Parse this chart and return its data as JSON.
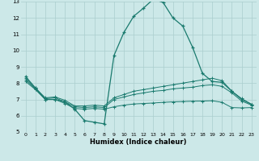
{
  "xlabel": "Humidex (Indice chaleur)",
  "background_color": "#cce8e8",
  "grid_color": "#aacece",
  "line_color": "#1a7a6e",
  "xlim": [
    -0.5,
    23.5
  ],
  "ylim": [
    5,
    13
  ],
  "xticks": [
    0,
    1,
    2,
    3,
    4,
    5,
    6,
    7,
    8,
    9,
    10,
    11,
    12,
    13,
    14,
    15,
    16,
    17,
    18,
    19,
    20,
    21,
    22,
    23
  ],
  "yticks": [
    5,
    6,
    7,
    8,
    9,
    10,
    11,
    12,
    13
  ],
  "line1_x": [
    0,
    1,
    2,
    3,
    4,
    5,
    6,
    7,
    8,
    9,
    10,
    11,
    12,
    13,
    14,
    15,
    16,
    17,
    18,
    19,
    20,
    21,
    22,
    23
  ],
  "line1_y": [
    8.4,
    7.7,
    7.0,
    7.0,
    6.85,
    6.4,
    5.7,
    5.6,
    5.5,
    9.7,
    11.1,
    12.1,
    12.6,
    13.15,
    12.95,
    12.0,
    11.5,
    10.2,
    8.6,
    8.1,
    8.05,
    7.5,
    7.0,
    6.7
  ],
  "line2_x": [
    0,
    1,
    2,
    3,
    4,
    5,
    6,
    7,
    8,
    9,
    10,
    11,
    12,
    13,
    14,
    15,
    16,
    17,
    18,
    19,
    20,
    21,
    22,
    23
  ],
  "line2_y": [
    8.3,
    7.7,
    7.1,
    7.15,
    6.95,
    6.6,
    6.6,
    6.65,
    6.6,
    7.1,
    7.3,
    7.5,
    7.6,
    7.7,
    7.8,
    7.9,
    8.0,
    8.1,
    8.2,
    8.3,
    8.15,
    7.5,
    7.05,
    6.7
  ],
  "line3_x": [
    0,
    1,
    2,
    3,
    4,
    5,
    6,
    7,
    8,
    9,
    10,
    11,
    12,
    13,
    14,
    15,
    16,
    17,
    18,
    19,
    20,
    21,
    22,
    23
  ],
  "line3_y": [
    8.2,
    7.65,
    7.05,
    7.1,
    6.85,
    6.55,
    6.5,
    6.55,
    6.5,
    7.0,
    7.15,
    7.3,
    7.4,
    7.5,
    7.55,
    7.65,
    7.7,
    7.75,
    7.85,
    7.9,
    7.8,
    7.4,
    6.9,
    6.65
  ],
  "line4_x": [
    0,
    1,
    2,
    3,
    4,
    5,
    6,
    7,
    8,
    9,
    10,
    11,
    12,
    13,
    14,
    15,
    16,
    17,
    18,
    19,
    20,
    21,
    22,
    23
  ],
  "line4_y": [
    8.1,
    7.6,
    7.0,
    7.0,
    6.75,
    6.45,
    6.4,
    6.45,
    6.4,
    6.55,
    6.65,
    6.72,
    6.75,
    6.78,
    6.82,
    6.85,
    6.87,
    6.89,
    6.9,
    6.92,
    6.82,
    6.5,
    6.48,
    6.5
  ]
}
